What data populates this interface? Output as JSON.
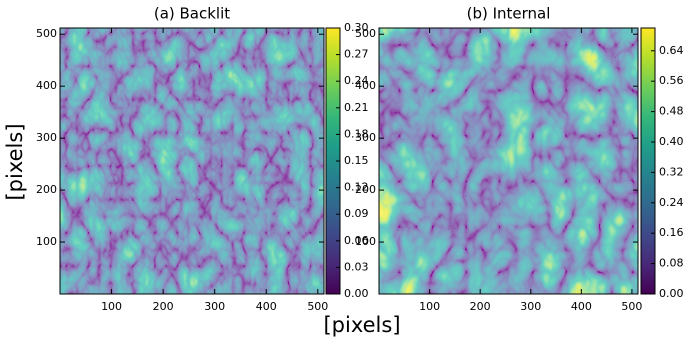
{
  "axis_labels": {
    "x": "[pixels]",
    "y": "[pixels]"
  },
  "chart_data": [
    {
      "type": "heatmap",
      "title": "(a) Backlit",
      "cmap": "viridis",
      "xlim": [
        0,
        512
      ],
      "ylim": [
        0,
        512
      ],
      "xticks": [
        100,
        200,
        300,
        400,
        500
      ],
      "yticks": [
        100,
        200,
        300,
        400,
        500
      ],
      "clim": [
        0,
        0.3
      ],
      "cticks": [
        {
          "value": 0,
          "label": "0.00"
        },
        0.03,
        0.06,
        0.09,
        0.12,
        0.15,
        0.18,
        0.21,
        0.24,
        0.27,
        {
          "value": 0.3,
          "label": "0.30"
        }
      ]
    },
    {
      "type": "heatmap",
      "title": "(b) Internal",
      "cmap": "viridis",
      "xlim": [
        0,
        512
      ],
      "ylim": [
        0,
        512
      ],
      "xticks": [
        100,
        200,
        300,
        400,
        500
      ],
      "yticks": [
        100,
        200,
        300,
        400,
        500
      ],
      "clim": [
        0,
        0.7
      ],
      "cticks": [
        {
          "value": 0,
          "label": "0.00"
        },
        0.08,
        0.16,
        0.24,
        0.32,
        {
          "value": 0.4,
          "label": "0.40"
        },
        0.48,
        0.56,
        0.64
      ]
    }
  ]
}
